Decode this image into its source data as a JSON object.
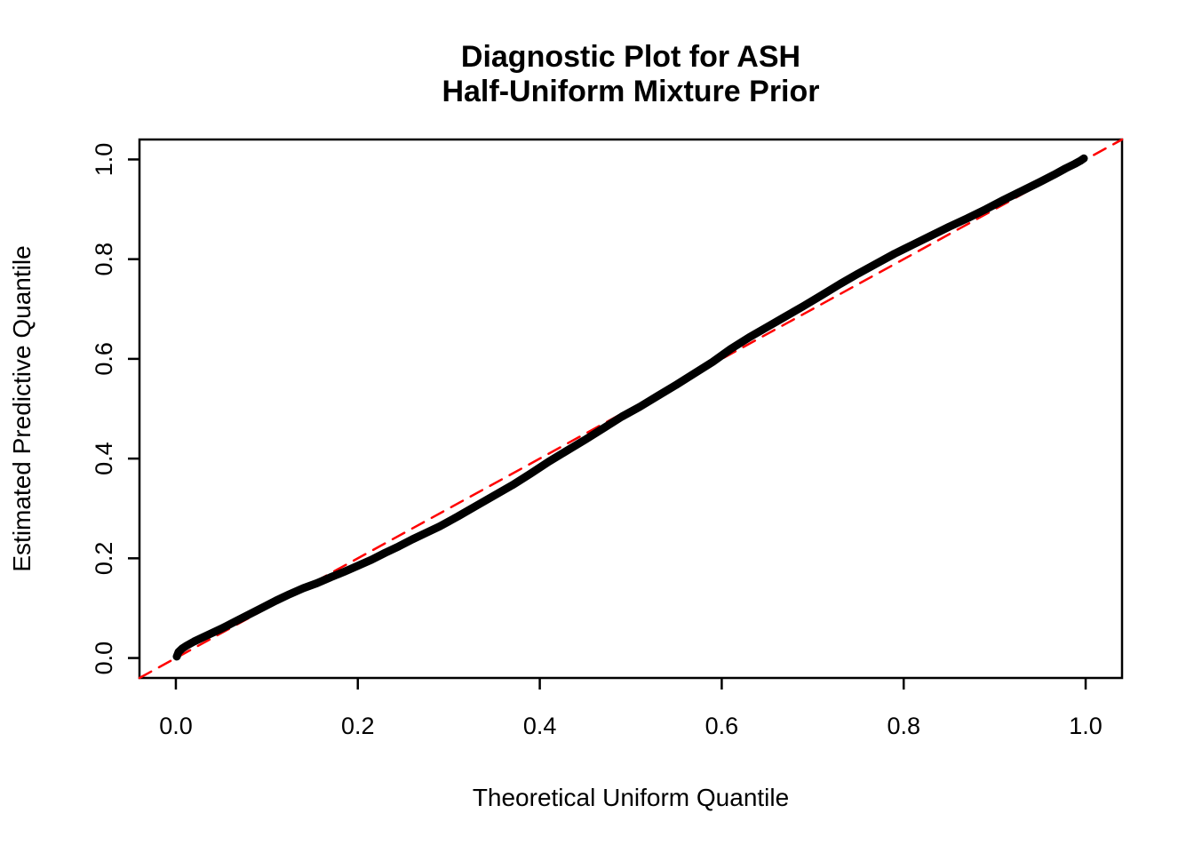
{
  "title": {
    "line1": "Diagnostic Plot for ASH",
    "line2": "Half-Uniform Mixture Prior"
  },
  "colors": {
    "curve": "#000000",
    "reference_line": "#FF0000",
    "axis": "#000000",
    "background": "#FFFFFF"
  },
  "chart_data": {
    "type": "scatter",
    "title": "Diagnostic Plot for ASH\nHalf-Uniform Mixture Prior",
    "xlabel": "Theoretical Uniform Quantile",
    "ylabel": "Estimated Predictive Quantile",
    "xlim": [
      -0.04,
      1.04
    ],
    "ylim": [
      -0.04,
      1.04
    ],
    "grid": false,
    "legend": "none",
    "x_ticks": [
      0.0,
      0.2,
      0.4,
      0.6,
      0.8,
      1.0
    ],
    "y_ticks": [
      0.0,
      0.2,
      0.4,
      0.6,
      0.8,
      1.0
    ],
    "x_tick_labels": [
      "0.0",
      "0.2",
      "0.4",
      "0.6",
      "0.8",
      "1.0"
    ],
    "y_tick_labels": [
      "0.0",
      "0.2",
      "0.4",
      "0.6",
      "0.8",
      "1.0"
    ],
    "series": [
      {
        "name": "reference-diagonal",
        "type": "line",
        "style": "dashed",
        "color": "#FF0000",
        "stroke_width": 2.5,
        "points": [
          [
            -0.04,
            -0.04
          ],
          [
            1.04,
            1.04
          ]
        ]
      },
      {
        "name": "estimated-vs-theoretical-quantiles",
        "type": "line",
        "style": "solid",
        "color": "#000000",
        "stroke_width": 9,
        "points": [
          [
            0.001,
            0.003
          ],
          [
            0.003,
            0.012
          ],
          [
            0.007,
            0.019
          ],
          [
            0.012,
            0.025
          ],
          [
            0.02,
            0.033
          ],
          [
            0.035,
            0.046
          ],
          [
            0.05,
            0.059
          ],
          [
            0.065,
            0.073
          ],
          [
            0.08,
            0.087
          ],
          [
            0.095,
            0.101
          ],
          [
            0.11,
            0.115
          ],
          [
            0.125,
            0.128
          ],
          [
            0.14,
            0.14
          ],
          [
            0.155,
            0.15
          ],
          [
            0.17,
            0.162
          ],
          [
            0.185,
            0.173
          ],
          [
            0.2,
            0.185
          ],
          [
            0.215,
            0.197
          ],
          [
            0.23,
            0.211
          ],
          [
            0.245,
            0.224
          ],
          [
            0.26,
            0.238
          ],
          [
            0.275,
            0.251
          ],
          [
            0.29,
            0.264
          ],
          [
            0.31,
            0.284
          ],
          [
            0.33,
            0.305
          ],
          [
            0.35,
            0.326
          ],
          [
            0.37,
            0.347
          ],
          [
            0.39,
            0.37
          ],
          [
            0.41,
            0.394
          ],
          [
            0.43,
            0.416
          ],
          [
            0.45,
            0.438
          ],
          [
            0.47,
            0.461
          ],
          [
            0.49,
            0.484
          ],
          [
            0.51,
            0.504
          ],
          [
            0.53,
            0.526
          ],
          [
            0.55,
            0.548
          ],
          [
            0.57,
            0.571
          ],
          [
            0.59,
            0.594
          ],
          [
            0.61,
            0.62
          ],
          [
            0.63,
            0.643
          ],
          [
            0.65,
            0.664
          ],
          [
            0.67,
            0.685
          ],
          [
            0.69,
            0.706
          ],
          [
            0.71,
            0.728
          ],
          [
            0.73,
            0.75
          ],
          [
            0.75,
            0.771
          ],
          [
            0.77,
            0.791
          ],
          [
            0.79,
            0.811
          ],
          [
            0.81,
            0.829
          ],
          [
            0.83,
            0.847
          ],
          [
            0.85,
            0.865
          ],
          [
            0.87,
            0.882
          ],
          [
            0.89,
            0.9
          ],
          [
            0.91,
            0.919
          ],
          [
            0.93,
            0.937
          ],
          [
            0.95,
            0.955
          ],
          [
            0.965,
            0.969
          ],
          [
            0.978,
            0.982
          ],
          [
            0.988,
            0.991
          ],
          [
            0.994,
            0.997
          ],
          [
            0.998,
            1.002
          ]
        ]
      }
    ]
  }
}
